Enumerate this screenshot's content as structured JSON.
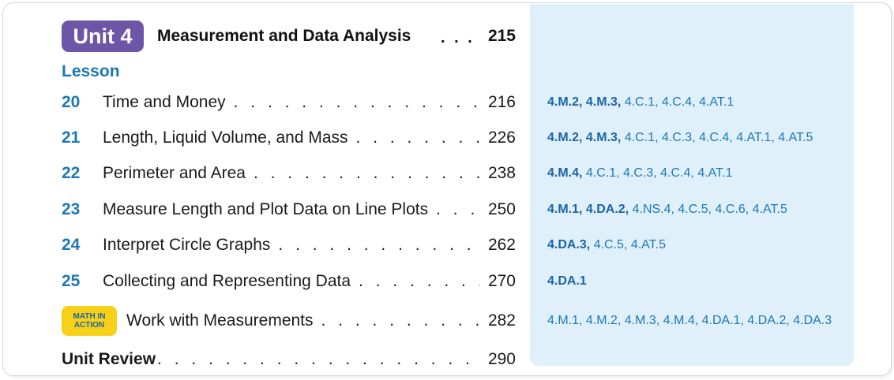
{
  "unit": {
    "badge": "Unit 4",
    "title": "Measurement and Data Analysis",
    "dots": ". . .",
    "page": "215"
  },
  "lesson_heading": "Lesson",
  "leader_dots": ". . . . . . . . . . . . . . . . . . . . . . . . . . . . . . . . . . . . . . . . . . . . .",
  "lessons": [
    {
      "number": "20",
      "title": "Time and Money",
      "page": "216",
      "standards_bold": "4.M.2, 4.M.3,",
      "standards_regular": " 4.C.1, 4.C.4, 4.AT.1"
    },
    {
      "number": "21",
      "title": "Length, Liquid Volume, and Mass",
      "page": "226",
      "standards_bold": "4.M.2, 4.M.3,",
      "standards_regular": " 4.C.1, 4.C.3, 4.C.4, 4.AT.1, 4.AT.5"
    },
    {
      "number": "22",
      "title": "Perimeter and Area",
      "page": "238",
      "standards_bold": "4.M.4,",
      "standards_regular": " 4.C.1, 4.C.3, 4.C.4, 4.AT.1"
    },
    {
      "number": "23",
      "title": "Measure Length and Plot Data on Line Plots",
      "page": "250",
      "standards_bold": "4.M.1, 4.DA.2,",
      "standards_regular": " 4.NS.4, 4.C.5, 4.C.6, 4.AT.5"
    },
    {
      "number": "24",
      "title": "Interpret Circle Graphs",
      "page": "262",
      "standards_bold": "4.DA.3,",
      "standards_regular": " 4.C.5, 4.AT.5"
    },
    {
      "number": "25",
      "title": "Collecting and Representing Data",
      "page": "270",
      "standards_bold": "4.DA.1",
      "standards_regular": ""
    }
  ],
  "math_in_action": {
    "badge_line1": "MATH IN",
    "badge_line2": "ACTION",
    "title": "Work with Measurements",
    "page": "282",
    "standards": "4.M.1, 4.M.2, 4.M.3, 4.M.4, 4.DA.1, 4.DA.2, 4.DA.3"
  },
  "unit_review": {
    "title": "Unit Review",
    "page": "290"
  },
  "colors": {
    "unit_badge": "#6d56a8",
    "lesson_blue": "#1b78b8",
    "panel_bg": "#dff0fa",
    "math_in_action_badge": "#f7d018"
  }
}
